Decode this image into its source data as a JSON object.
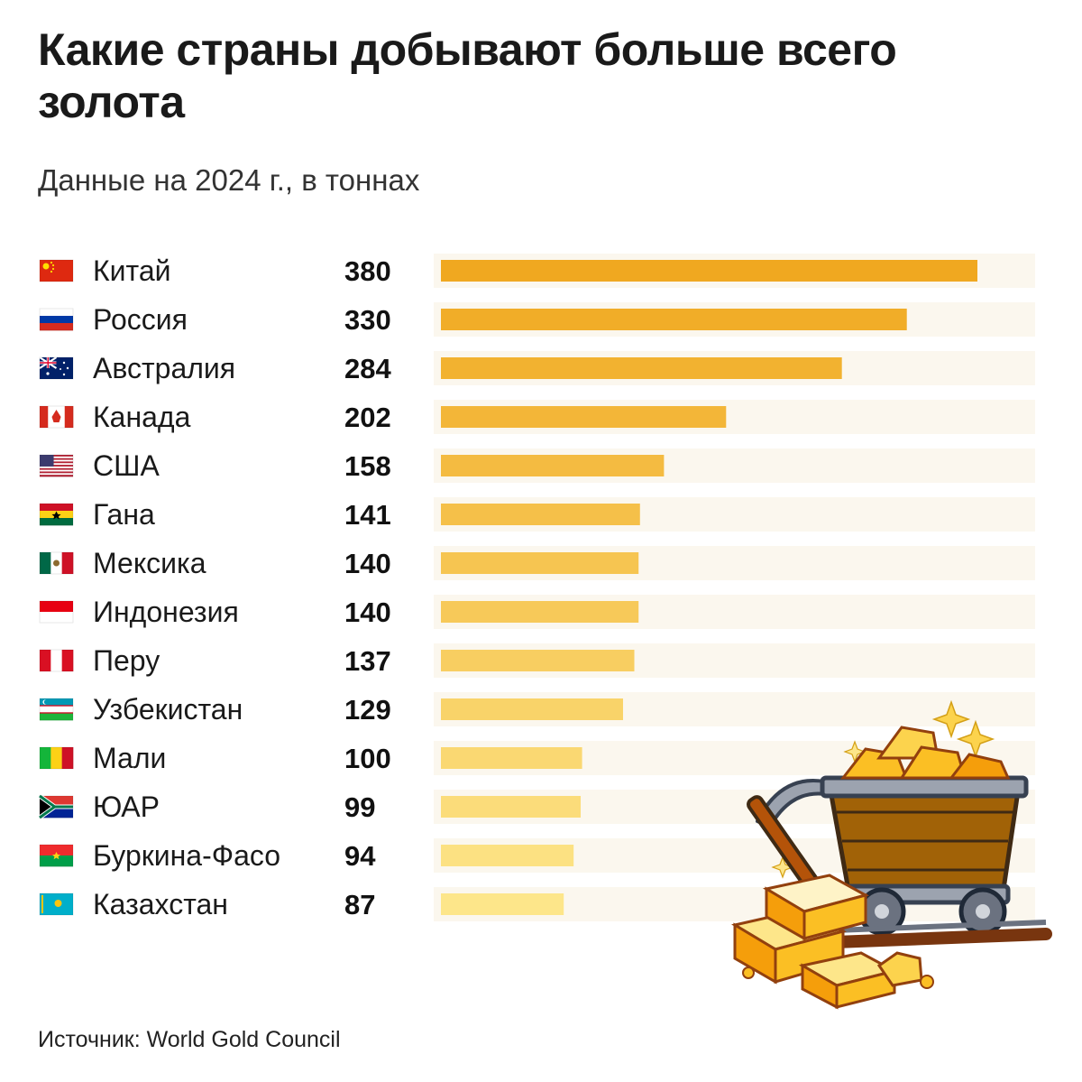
{
  "title": "Какие страны добывают больше всего золота",
  "subtitle": "Данные на 2024 г., в тоннах",
  "source": "Источник: World Gold Council",
  "colors": {
    "bar_top": "#f0a820",
    "bar_bottom": "#fde68a",
    "row_stripe": "#fbf7ee"
  },
  "chart_data": {
    "type": "bar",
    "orientation": "horizontal",
    "title": "Какие страны добывают больше всего золота",
    "subtitle": "Данные на 2024 г., в тоннах",
    "unit": "тонн",
    "categories": [
      "Китай",
      "Россия",
      "Австралия",
      "Канада",
      "США",
      "Гана",
      "Мексика",
      "Индонезия",
      "Перу",
      "Узбекистан",
      "Мали",
      "ЮАР",
      "Буркина-Фасо",
      "Казахстан"
    ],
    "values": [
      380,
      330,
      284,
      202,
      158,
      141,
      140,
      140,
      137,
      129,
      100,
      99,
      94,
      87
    ],
    "flags": [
      "china-flag-icon",
      "russia-flag-icon",
      "australia-flag-icon",
      "canada-flag-icon",
      "usa-flag-icon",
      "ghana-flag-icon",
      "mexico-flag-icon",
      "indonesia-flag-icon",
      "peru-flag-icon",
      "uzbekistan-flag-icon",
      "mali-flag-icon",
      "south-africa-flag-icon",
      "burkina-faso-flag-icon",
      "kazakhstan-flag-icon"
    ],
    "xlim": [
      0,
      380
    ],
    "grid": false
  }
}
